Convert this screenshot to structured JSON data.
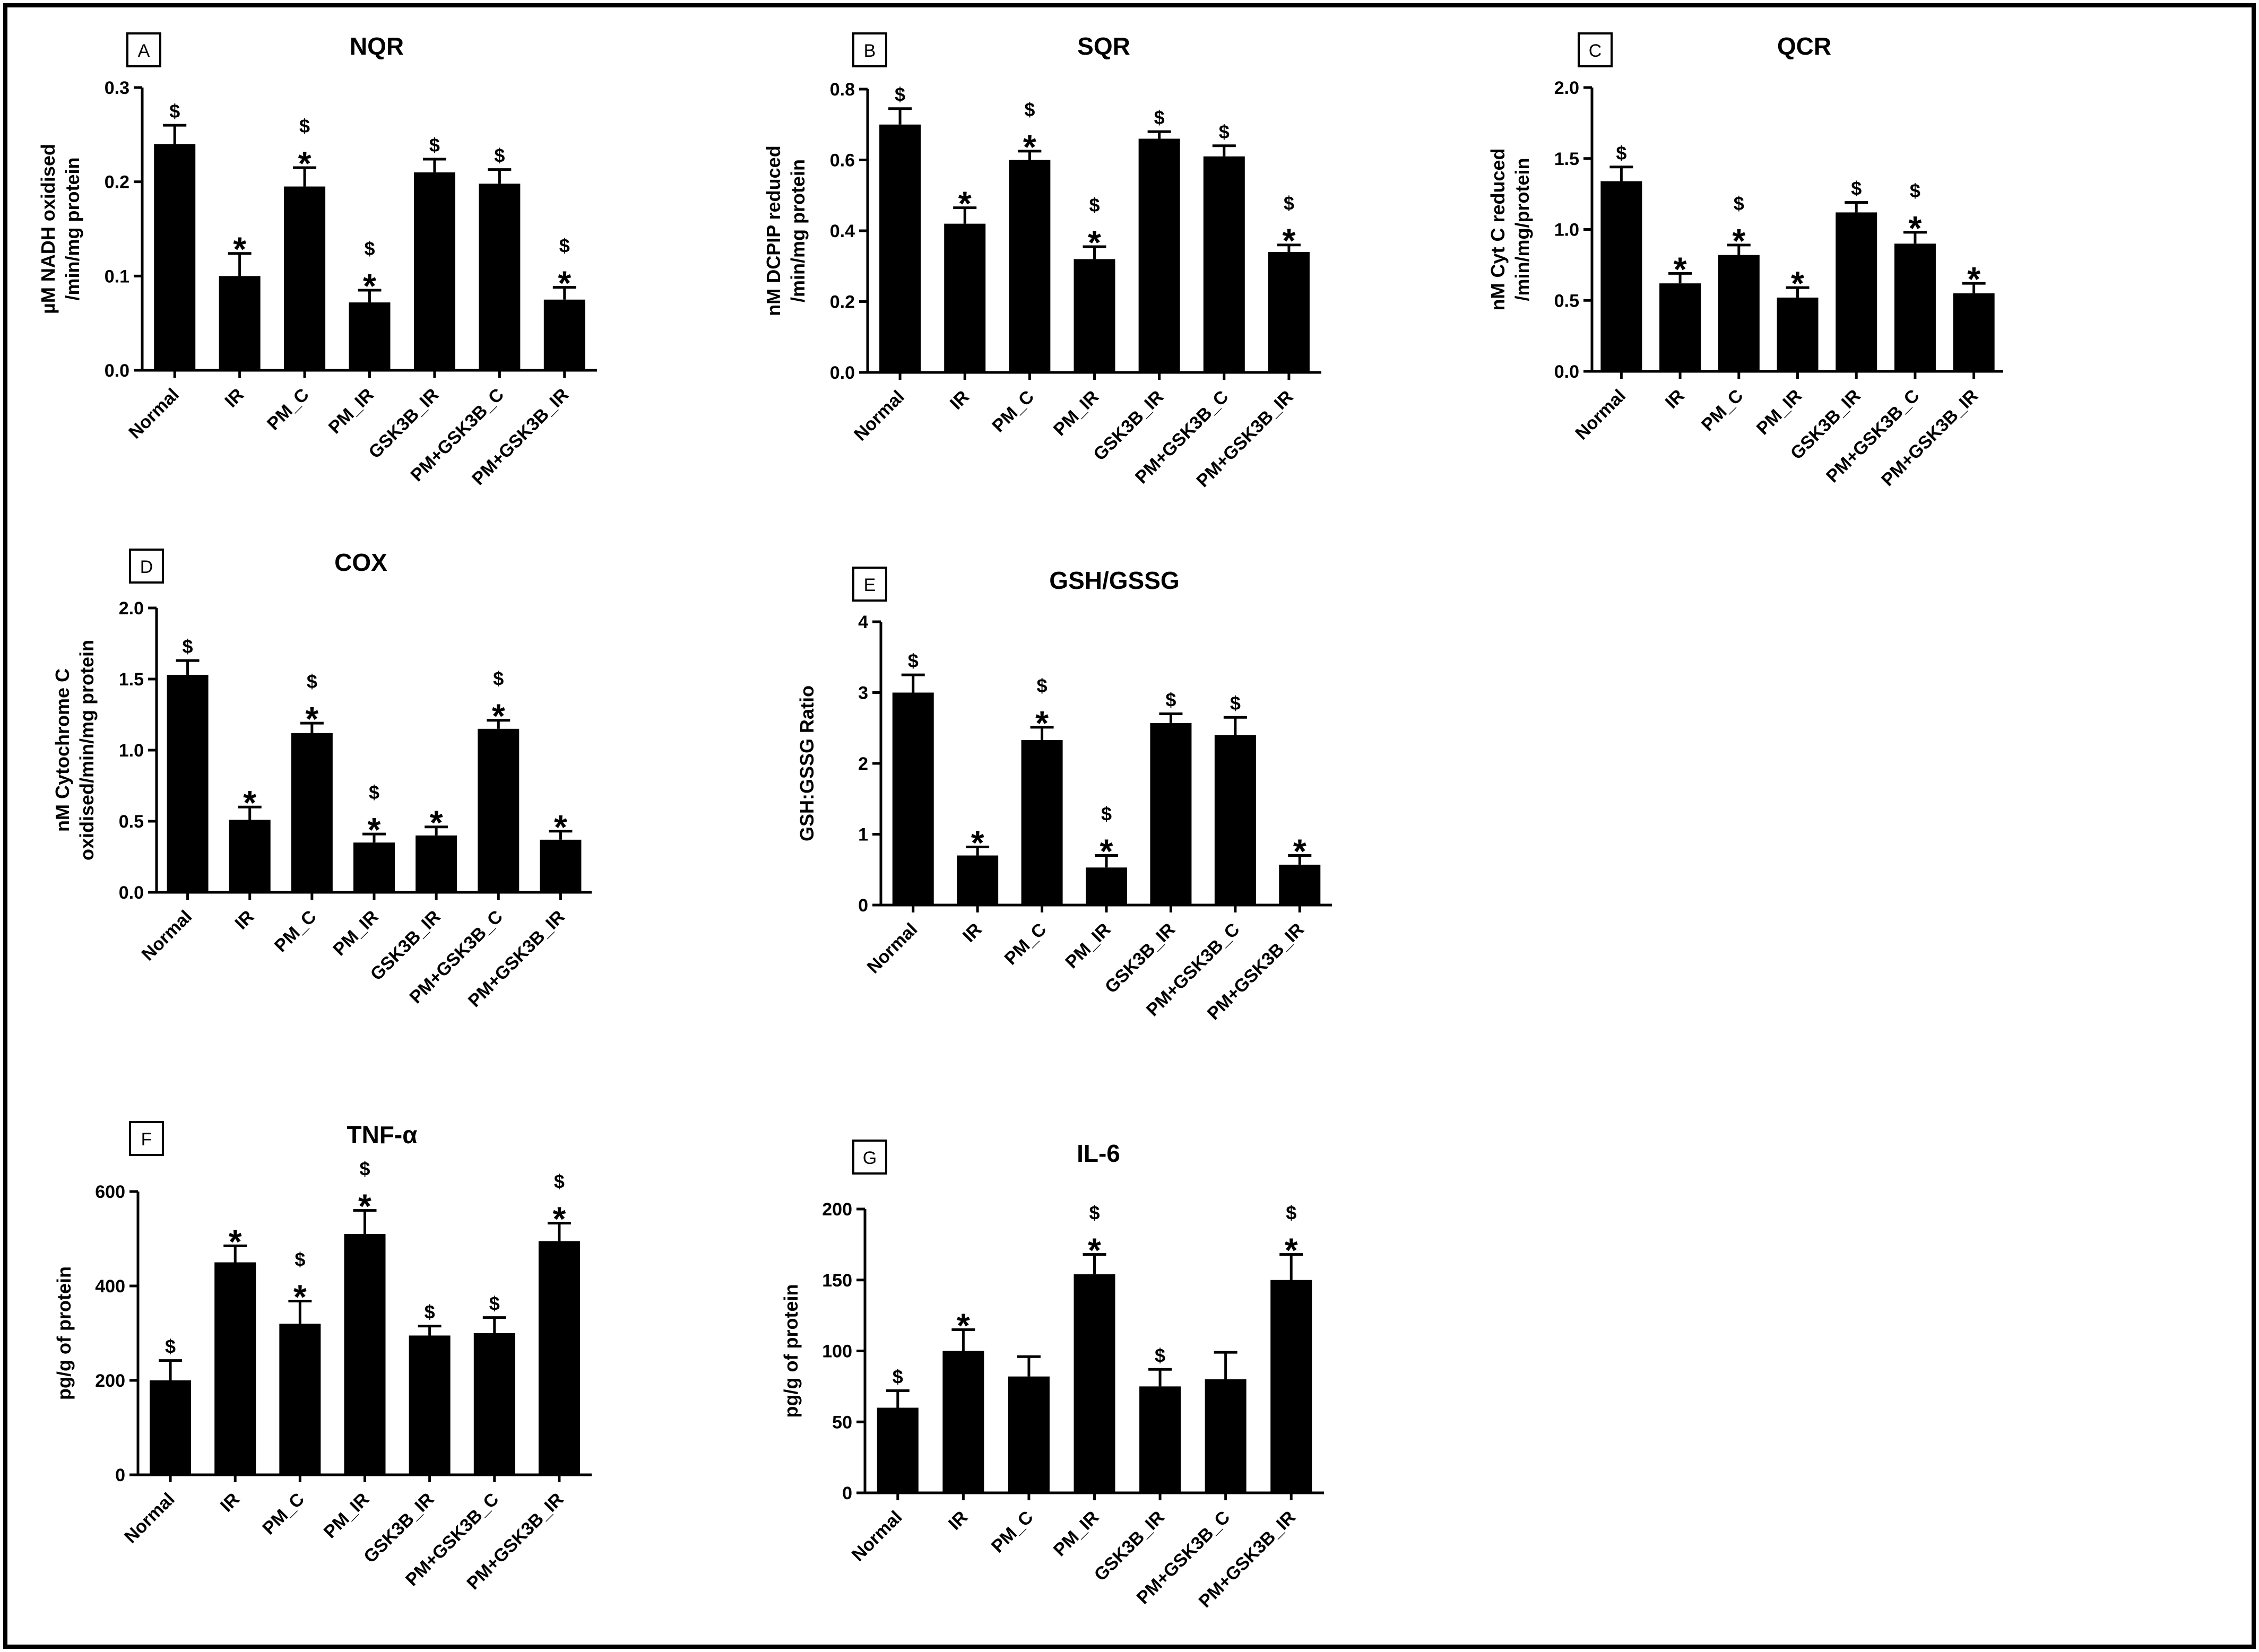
{
  "figure": {
    "panels": [
      {
        "id": "A",
        "title": "NQR",
        "ylabel": [
          "µM NADH oxidised",
          "/min/mg protein"
        ]
      },
      {
        "id": "B",
        "title": "SQR",
        "ylabel": [
          "nM DCPIP reduced",
          "/min/mg protein"
        ]
      },
      {
        "id": "C",
        "title": "QCR",
        "ylabel": [
          "nM Cyt C reduced",
          "/min/mg/protein"
        ]
      },
      {
        "id": "D",
        "title": "COX",
        "ylabel": [
          "nM Cytochrome C",
          "oxidised/min/mg protein"
        ]
      },
      {
        "id": "E",
        "title": "GSH/GSSG",
        "ylabel": [
          "GSH:GSSG Ratio"
        ]
      },
      {
        "id": "F",
        "title": "TNF-α",
        "ylabel": [
          "pg/g of protein"
        ]
      },
      {
        "id": "G",
        "title": "IL-6",
        "ylabel": [
          "pg/g of protein"
        ]
      }
    ]
  },
  "chart_data": [
    {
      "panel": "A",
      "type": "bar",
      "title": "NQR",
      "ylabel": "µM NADH oxidised /min/mg protein",
      "categories": [
        "Normal",
        "IR",
        "PM_C",
        "PM_IR",
        "GSK3B_IR",
        "PM+GSK3B_C",
        "PM+GSK3B_IR"
      ],
      "values": [
        0.24,
        0.1,
        0.195,
        0.072,
        0.21,
        0.198,
        0.075
      ],
      "errors": [
        0.02,
        0.024,
        0.02,
        0.013,
        0.014,
        0.015,
        0.013
      ],
      "annotations": [
        "$",
        "*",
        "$*",
        "$*",
        "$",
        "$",
        "$*"
      ],
      "ylim": [
        0,
        0.3
      ],
      "yticks": [
        0.0,
        0.1,
        0.2,
        0.3
      ],
      "ytick_labels": [
        "0.0",
        "0.1",
        "0.2",
        "0.3"
      ]
    },
    {
      "panel": "B",
      "type": "bar",
      "title": "SQR",
      "ylabel": "nM DCPIP reduced /min/mg protein",
      "categories": [
        "Normal",
        "IR",
        "PM_C",
        "PM_IR",
        "GSK3B_IR",
        "PM+GSK3B_C",
        "PM+GSK3B_IR"
      ],
      "values": [
        0.7,
        0.42,
        0.6,
        0.32,
        0.66,
        0.61,
        0.34
      ],
      "errors": [
        0.045,
        0.045,
        0.025,
        0.035,
        0.02,
        0.03,
        0.02
      ],
      "annotations": [
        "$",
        "*",
        "$*",
        "$*",
        "$",
        "$",
        "$*"
      ],
      "ylim": [
        0,
        0.8
      ],
      "yticks": [
        0.0,
        0.2,
        0.4,
        0.6,
        0.8
      ],
      "ytick_labels": [
        "0.0",
        "0.2",
        "0.4",
        "0.6",
        "0.8"
      ]
    },
    {
      "panel": "C",
      "type": "bar",
      "title": "QCR",
      "ylabel": "nM Cyt C reduced /min/mg/protein",
      "categories": [
        "Normal",
        "IR",
        "PM_C",
        "PM_IR",
        "GSK3B_IR",
        "PM+GSK3B_C",
        "PM+GSK3B_IR"
      ],
      "values": [
        1.34,
        0.62,
        0.82,
        0.52,
        1.12,
        0.9,
        0.55
      ],
      "errors": [
        0.1,
        0.07,
        0.07,
        0.07,
        0.07,
        0.08,
        0.07
      ],
      "annotations": [
        "$",
        "*",
        "$*",
        "*",
        "$",
        "$*",
        "*"
      ],
      "ylim": [
        0,
        2.0
      ],
      "yticks": [
        0.0,
        0.5,
        1.0,
        1.5,
        2.0
      ],
      "ytick_labels": [
        "0.0",
        "0.5",
        "1.0",
        "1.5",
        "2.0"
      ]
    },
    {
      "panel": "D",
      "type": "bar",
      "title": "COX",
      "ylabel": "nM Cytochrome C oxidised/min/mg protein",
      "categories": [
        "Normal",
        "IR",
        "PM_C",
        "PM_IR",
        "GSK3B_IR",
        "PM+GSK3B_C",
        "PM+GSK3B_IR"
      ],
      "values": [
        1.53,
        0.51,
        1.12,
        0.35,
        0.4,
        1.15,
        0.37
      ],
      "errors": [
        0.1,
        0.09,
        0.07,
        0.06,
        0.06,
        0.06,
        0.06
      ],
      "annotations": [
        "$",
        "*",
        "$*",
        "$*",
        "*",
        "$*",
        "*"
      ],
      "ylim": [
        0,
        2.0
      ],
      "yticks": [
        0.0,
        0.5,
        1.0,
        1.5,
        2.0
      ],
      "ytick_labels": [
        "0.0",
        "0.5",
        "1.0",
        "1.5",
        "2.0"
      ]
    },
    {
      "panel": "E",
      "type": "bar",
      "title": "GSH/GSSG",
      "ylabel": "GSH:GSSG Ratio",
      "categories": [
        "Normal",
        "IR",
        "PM_C",
        "PM_IR",
        "GSK3B_IR",
        "PM+GSK3B_C",
        "PM+GSK3B_IR"
      ],
      "values": [
        3.0,
        0.7,
        2.33,
        0.53,
        2.57,
        2.4,
        0.57
      ],
      "errors": [
        0.25,
        0.12,
        0.18,
        0.17,
        0.13,
        0.25,
        0.13
      ],
      "annotations": [
        "$",
        "*",
        "$*",
        "$*",
        "$",
        "$",
        "*"
      ],
      "ylim": [
        0,
        4
      ],
      "yticks": [
        0,
        1,
        2,
        3,
        4
      ],
      "ytick_labels": [
        "0",
        "1",
        "2",
        "3",
        "4"
      ]
    },
    {
      "panel": "F",
      "type": "bar",
      "title": "TNF-α",
      "ylabel": "pg/g of protein",
      "categories": [
        "Normal",
        "IR",
        "PM_C",
        "PM_IR",
        "GSK3B_IR",
        "PM+GSK3B_C",
        "PM+GSK3B_IR"
      ],
      "values": [
        200,
        450,
        320,
        510,
        295,
        300,
        495
      ],
      "errors": [
        42,
        35,
        48,
        50,
        20,
        33,
        38
      ],
      "annotations": [
        "$",
        "*",
        "$*",
        "$*",
        "$",
        "$",
        "$*"
      ],
      "ylim": [
        0,
        600
      ],
      "yticks": [
        0,
        200,
        400,
        600
      ],
      "ytick_labels": [
        "0",
        "200",
        "400",
        "600"
      ]
    },
    {
      "panel": "G",
      "type": "bar",
      "title": "IL-6",
      "ylabel": "pg/g of protein",
      "categories": [
        "Normal",
        "IR",
        "PM_C",
        "PM_IR",
        "GSK3B_IR",
        "PM+GSK3B_C",
        "PM+GSK3B_IR"
      ],
      "values": [
        60,
        100,
        82,
        154,
        75,
        80,
        150
      ],
      "errors": [
        12,
        15,
        14,
        14,
        12,
        19,
        18
      ],
      "annotations": [
        "$",
        "*",
        "",
        "$*",
        "$",
        "",
        "$*"
      ],
      "ylim": [
        0,
        200
      ],
      "yticks": [
        0,
        50,
        100,
        150,
        200
      ],
      "ytick_labels": [
        "0",
        "50",
        "100",
        "150",
        "200"
      ]
    }
  ]
}
